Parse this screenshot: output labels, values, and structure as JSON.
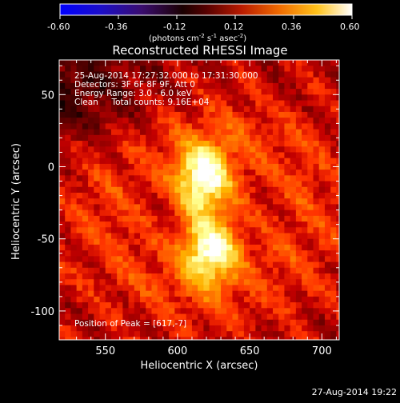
{
  "colorbar": {
    "ticks": [
      "-0.60",
      "-0.36",
      "-0.12",
      "0.12",
      "0.36",
      "0.60"
    ],
    "tick_values": [
      -0.6,
      -0.36,
      -0.12,
      0.12,
      0.36,
      0.6
    ],
    "range": [
      -0.6,
      0.6
    ],
    "unit_main": "(photons cm",
    "unit_sup1": "-2",
    "unit_mid1": " s",
    "unit_sup2": "-1",
    "unit_mid2": " asec",
    "unit_sup3": "-2",
    "unit_end": ")"
  },
  "annotations": {
    "time": "25-Aug-2014 17:27:32.000 to 17:31:30.000",
    "detectors": "Detectors: 3F 6F 8F 9F, Att 0",
    "energy": "Energy Range: 3.0 - 6.0 keV",
    "clean": "Clean     Total counts: 9.16E+04",
    "peak": "Position of Peak = [617,-7]"
  },
  "footer": {
    "timestamp": "27-Aug-2014 19:22"
  },
  "chart_data": {
    "type": "heatmap",
    "title": "Reconstructed RHESSI Image",
    "xlabel": "Heliocentric X (arcsec)",
    "ylabel": "Heliocentric Y (arcsec)",
    "x_ticks": [
      550,
      600,
      650,
      700
    ],
    "y_ticks": [
      50,
      0,
      -50,
      -100
    ],
    "xlim": [
      518,
      712
    ],
    "ylim": [
      -120,
      74
    ],
    "colormap": "red-temperature",
    "colorbar_range": [
      -0.6,
      0.6
    ],
    "peak": [
      617,
      -7
    ],
    "pixel_size_arcsec": 4,
    "sources": [
      {
        "x": 618,
        "y": -8,
        "peak": 0.6
      },
      {
        "x": 622,
        "y": -58,
        "peak": 0.56
      }
    ]
  }
}
